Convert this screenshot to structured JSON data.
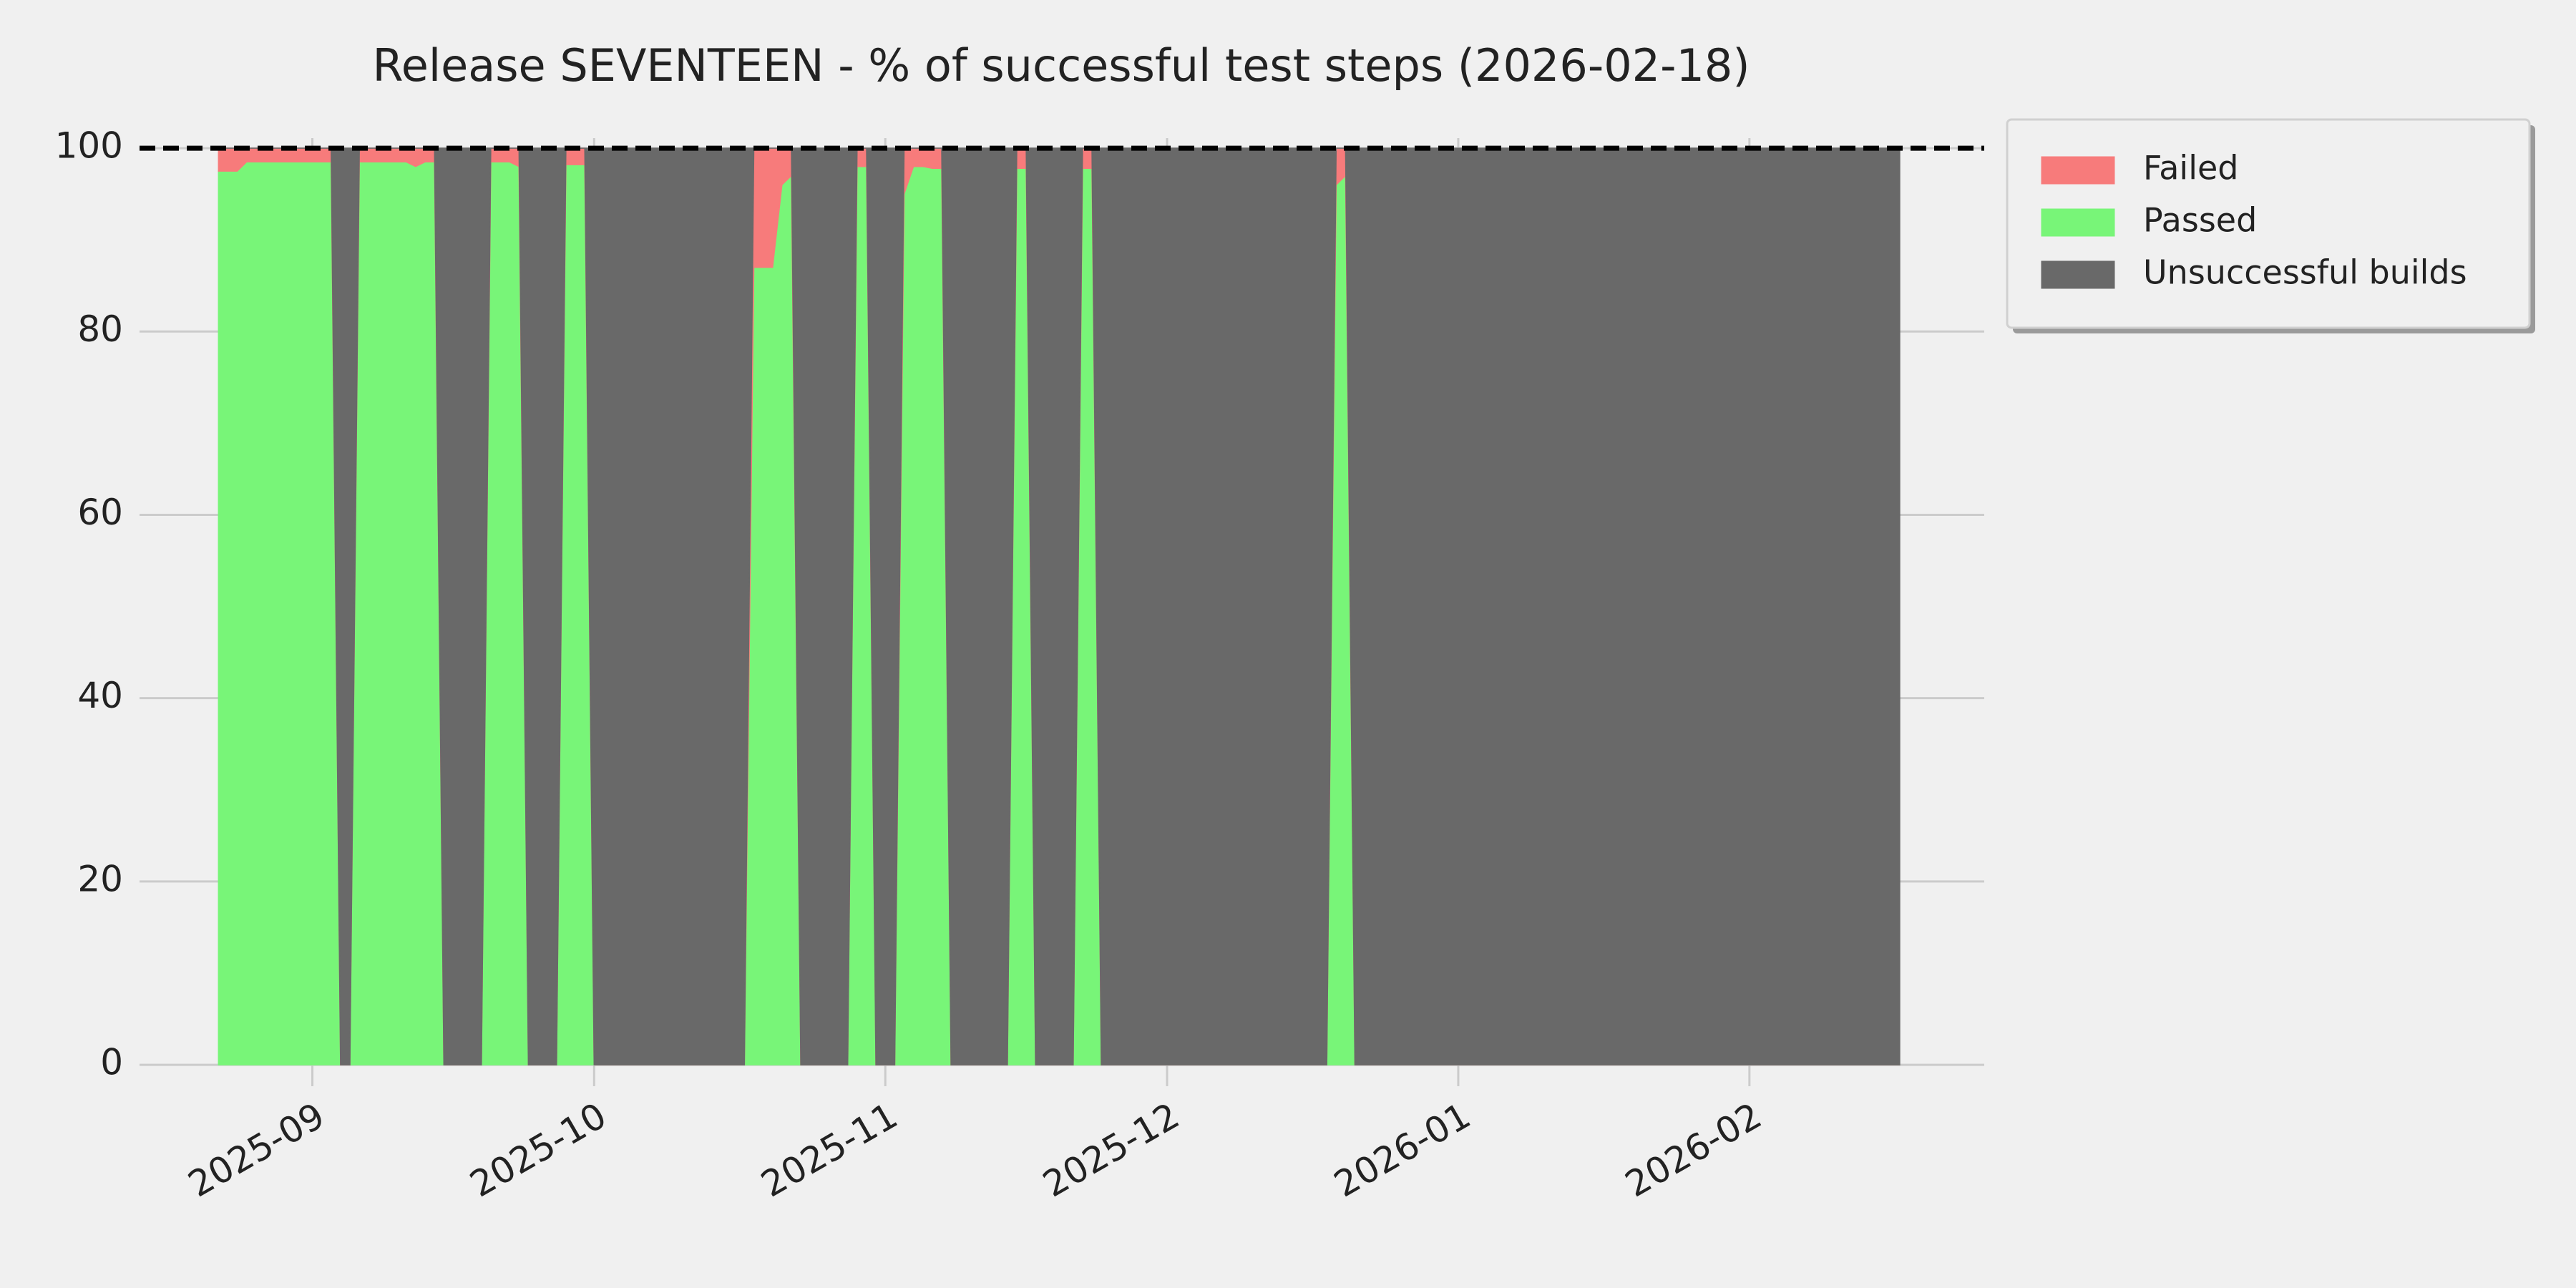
{
  "chart_data": {
    "type": "stackplot",
    "title": "Release SEVENTEEN - % of successful test steps (2026-02-18)",
    "x": [
      20322,
      20323,
      20324,
      20325,
      20326,
      20327,
      20328,
      20329,
      20330,
      20331,
      20332,
      20333,
      20334,
      20335,
      20336,
      20337,
      20338,
      20339,
      20340,
      20341,
      20342,
      20343,
      20344,
      20345,
      20346,
      20347,
      20348,
      20349,
      20350,
      20351,
      20352,
      20353,
      20354,
      20355,
      20356,
      20357,
      20358,
      20359,
      20360,
      20361,
      20362,
      20363,
      20364,
      20365,
      20366,
      20367,
      20368,
      20369,
      20370,
      20371,
      20372,
      20373,
      20374,
      20375,
      20376,
      20377,
      20378,
      20379,
      20380,
      20381,
      20382,
      20383,
      20384,
      20385,
      20386,
      20387,
      20388,
      20389,
      20390,
      20391,
      20392,
      20393,
      20394,
      20395,
      20396,
      20397,
      20398,
      20399,
      20400,
      20401,
      20402,
      20403,
      20404,
      20405,
      20406,
      20407,
      20408,
      20409,
      20410,
      20411,
      20412,
      20413,
      20414,
      20415,
      20416,
      20417,
      20418,
      20419,
      20420,
      20421,
      20422,
      20423,
      20424,
      20425,
      20426,
      20427,
      20428,
      20429,
      20430,
      20431,
      20432,
      20433,
      20434,
      20435,
      20436,
      20437,
      20438,
      20439,
      20440,
      20441,
      20442,
      20443,
      20444,
      20445,
      20446,
      20447,
      20448,
      20449,
      20450,
      20451,
      20452,
      20453,
      20454,
      20455,
      20456,
      20457,
      20458,
      20459,
      20460,
      20461,
      20462,
      20463,
      20464,
      20465,
      20466,
      20467,
      20468,
      20469,
      20470,
      20471,
      20472,
      20473,
      20474,
      20475,
      20476,
      20477,
      20478,
      20479,
      20480,
      20481,
      20482,
      20483,
      20484,
      20485,
      20486,
      20487,
      20488,
      20489,
      20490,
      20491,
      20492,
      20493,
      20494,
      20495,
      20496,
      20497,
      20498,
      20499,
      20500,
      20501
    ],
    "series": [
      {
        "name": "Failed",
        "color": "#f77b7b",
        "values": [
          2.5,
          2.5,
          2.5,
          1.5,
          1.5,
          1.5,
          1.5,
          1.5,
          1.5,
          1.5,
          1.5,
          1.5,
          1.5,
          0,
          0,
          1.5,
          1.5,
          1.5,
          1.5,
          1.5,
          1.5,
          2,
          1.5,
          1.5,
          0,
          0,
          0,
          0,
          0,
          1.5,
          1.5,
          1.5,
          2,
          0,
          0,
          0,
          0,
          1.8,
          1.8,
          1.8,
          0,
          0,
          0,
          0,
          0,
          0,
          0,
          0,
          0,
          0,
          0,
          0,
          0,
          0,
          0,
          0,
          0,
          13,
          13,
          13,
          4,
          3,
          0,
          0,
          0,
          0,
          0,
          0,
          2,
          2,
          0,
          0,
          0,
          5,
          2,
          2,
          2.2,
          2.2,
          0,
          0,
          0,
          0,
          0,
          0,
          0,
          2.2,
          2.2,
          0,
          0,
          0,
          0,
          0,
          2.2,
          2.2,
          0,
          0,
          0,
          0,
          0,
          0,
          0,
          0,
          0,
          0,
          0,
          0,
          0,
          0,
          0,
          0,
          0,
          0,
          0,
          0,
          0,
          0,
          0,
          0,
          0,
          4,
          3,
          0,
          0,
          0,
          0,
          0,
          0,
          0,
          0,
          0,
          0,
          0,
          0,
          0,
          0,
          0,
          0,
          0,
          0,
          0,
          0,
          0,
          0,
          0,
          0,
          0,
          0,
          0,
          0,
          0,
          0,
          0,
          0,
          0,
          0,
          0,
          0,
          0,
          0,
          0,
          0,
          0,
          0,
          0,
          0,
          0,
          0,
          0,
          0,
          0,
          0,
          0,
          0,
          0,
          0,
          0,
          0,
          0,
          0,
          0
        ]
      },
      {
        "name": "Passed",
        "color": "#78f578",
        "values": [
          97.5,
          97.5,
          97.5,
          98.5,
          98.5,
          98.5,
          98.5,
          98.5,
          98.5,
          98.5,
          98.5,
          98.5,
          98.5,
          0,
          0,
          98.5,
          98.5,
          98.5,
          98.5,
          98.5,
          98.5,
          98,
          98.5,
          98.5,
          0,
          0,
          0,
          0,
          0,
          98.5,
          98.5,
          98.5,
          98,
          0,
          0,
          0,
          0,
          98.2,
          98.2,
          98.2,
          0,
          0,
          0,
          0,
          0,
          0,
          0,
          0,
          0,
          0,
          0,
          0,
          0,
          0,
          0,
          0,
          0,
          87,
          87,
          87,
          96,
          97,
          0,
          0,
          0,
          0,
          0,
          0,
          98,
          98,
          0,
          0,
          0,
          95,
          98,
          98,
          97.8,
          97.8,
          0,
          0,
          0,
          0,
          0,
          0,
          0,
          97.8,
          97.8,
          0,
          0,
          0,
          0,
          0,
          97.8,
          97.8,
          0,
          0,
          0,
          0,
          0,
          0,
          0,
          0,
          0,
          0,
          0,
          0,
          0,
          0,
          0,
          0,
          0,
          0,
          0,
          0,
          0,
          0,
          0,
          0,
          0,
          96,
          97,
          0,
          0,
          0,
          0,
          0,
          0,
          0,
          0,
          0,
          0,
          0,
          0,
          0,
          0,
          0,
          0,
          0,
          0,
          0,
          0,
          0,
          0,
          0,
          0,
          0,
          0,
          0,
          0,
          0,
          0,
          0,
          0,
          0,
          0,
          0,
          0,
          0,
          0,
          0,
          0,
          0,
          0,
          0,
          0,
          0,
          0,
          0,
          0,
          0,
          0,
          0,
          0,
          0,
          0,
          0,
          0,
          0,
          0,
          0
        ]
      },
      {
        "name": "Unsuccessful builds",
        "color": "#696969",
        "values": [
          0,
          0,
          0,
          0,
          0,
          0,
          0,
          0,
          0,
          0,
          0,
          0,
          0,
          100,
          100,
          0,
          0,
          0,
          0,
          0,
          0,
          0,
          0,
          0,
          100,
          100,
          100,
          100,
          100,
          0,
          0,
          0,
          0,
          100,
          100,
          100,
          100,
          0,
          0,
          0,
          100,
          100,
          100,
          100,
          100,
          100,
          100,
          100,
          100,
          100,
          100,
          100,
          100,
          100,
          100,
          100,
          100,
          0,
          0,
          0,
          0,
          0,
          100,
          100,
          100,
          100,
          100,
          100,
          0,
          0,
          100,
          100,
          100,
          0,
          0,
          0,
          0,
          0,
          100,
          100,
          100,
          100,
          100,
          100,
          100,
          0,
          0,
          100,
          100,
          100,
          100,
          100,
          0,
          0,
          100,
          100,
          100,
          100,
          100,
          100,
          100,
          100,
          100,
          100,
          100,
          100,
          100,
          100,
          100,
          100,
          100,
          100,
          100,
          100,
          100,
          100,
          100,
          100,
          100,
          0,
          0,
          100,
          100,
          100,
          100,
          100,
          100,
          100,
          100,
          100,
          100,
          100,
          100,
          100,
          100,
          100,
          100,
          100,
          100,
          100,
          100,
          100,
          100,
          100,
          100,
          100,
          100,
          100,
          100,
          100,
          100,
          100,
          100,
          100,
          100,
          100,
          100,
          100,
          100,
          100,
          100,
          100,
          100,
          100,
          100,
          100,
          100,
          100,
          100,
          100,
          100,
          100,
          100,
          100,
          100,
          100,
          100,
          100,
          100,
          100
        ]
      }
    ],
    "xlim": [
      20313.6,
      20510
    ],
    "xticks": [
      {
        "value": 20332,
        "label": "2025-09"
      },
      {
        "value": 20362,
        "label": "2025-10"
      },
      {
        "value": 20393,
        "label": "2025-11"
      },
      {
        "value": 20423,
        "label": "2025-12"
      },
      {
        "value": 20454,
        "label": "2026-01"
      },
      {
        "value": 20485,
        "label": "2026-02"
      }
    ],
    "ylim": [
      -1.4,
      101.1
    ],
    "yticks": [
      0,
      20,
      40,
      60,
      80,
      100
    ],
    "reference_line": 100,
    "grid": true,
    "legend": "outside upper right"
  }
}
